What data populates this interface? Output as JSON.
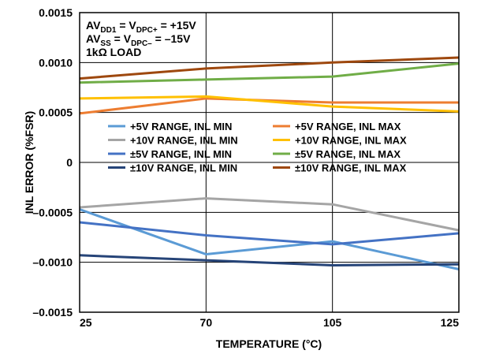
{
  "chart_data": {
    "type": "line",
    "title": "",
    "xlabel": "TEMPERATURE (°C)",
    "ylabel": "INL ERROR (%FSR)",
    "x": [
      25,
      70,
      105,
      125
    ],
    "x_tick_labels": [
      "25",
      "70",
      "105",
      "125"
    ],
    "ylim": [
      -0.0015,
      0.0015
    ],
    "y_ticks": [
      -0.0015,
      -0.001,
      -0.0005,
      0,
      0.0005,
      0.001,
      0.0015
    ],
    "y_tick_labels": [
      "–0.0015",
      "–0.0010",
      "–0.0005",
      "0",
      "0.0005",
      "0.0010",
      "0.0015"
    ],
    "grid": true,
    "conditions": [
      {
        "parts": [
          {
            "t": "AV",
            "sub": false
          },
          {
            "t": "DD1",
            "sub": true
          },
          {
            "t": " = V",
            "sub": false
          },
          {
            "t": "DPC+",
            "sub": true
          },
          {
            "t": " = +15V",
            "sub": false
          }
        ]
      },
      {
        "parts": [
          {
            "t": "AV",
            "sub": false
          },
          {
            "t": "SS",
            "sub": true
          },
          {
            "t": " = V",
            "sub": false
          },
          {
            "t": "DPC–",
            "sub": true
          },
          {
            "t": " = –15V",
            "sub": false
          }
        ]
      },
      {
        "parts": [
          {
            "t": "1kΩ LOAD",
            "sub": false
          }
        ]
      }
    ],
    "legend_placement": "center",
    "series": [
      {
        "name": "+5V RANGE, INL MIN",
        "color": "#5b9bd5",
        "values": [
          -0.00047,
          -0.00092,
          -0.00079,
          -0.00107
        ]
      },
      {
        "name": "+5V RANGE, INL MAX",
        "color": "#ed7d31",
        "values": [
          0.00049,
          0.00064,
          0.0006,
          0.0006
        ]
      },
      {
        "name": "+10V RANGE, INL MIN",
        "color": "#a5a5a5",
        "values": [
          -0.00045,
          -0.00036,
          -0.00042,
          -0.00068
        ]
      },
      {
        "name": "+10V RANGE, INL MAX",
        "color": "#ffc000",
        "values": [
          0.00064,
          0.00066,
          0.00056,
          0.00051
        ]
      },
      {
        "name": "±5V RANGE, INL MIN",
        "color": "#4472c4",
        "values": [
          -0.0006,
          -0.00073,
          -0.00082,
          -0.00071
        ]
      },
      {
        "name": "±5V RANGE, INL MAX",
        "color": "#70ad47",
        "values": [
          0.0008,
          0.00083,
          0.00086,
          0.00099
        ]
      },
      {
        "name": "±10V RANGE, INL MIN",
        "color": "#264478",
        "values": [
          -0.00093,
          -0.00098,
          -0.00103,
          -0.00102
        ]
      },
      {
        "name": "±10V RANGE, INL MAX",
        "color": "#9e480e",
        "values": [
          0.00084,
          0.00094,
          0.001,
          0.00105
        ]
      }
    ]
  }
}
